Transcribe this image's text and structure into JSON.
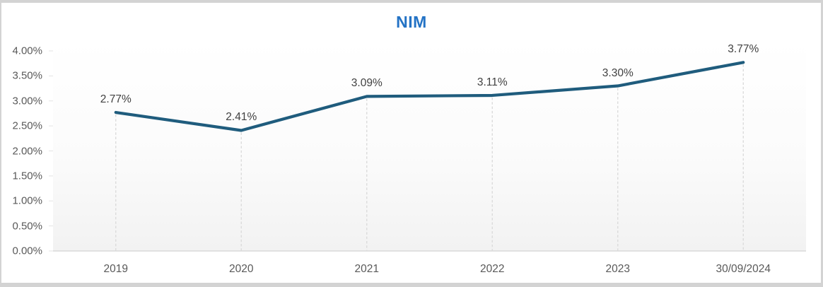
{
  "chart_data": {
    "type": "line",
    "title": "NIM",
    "categories": [
      "2019",
      "2020",
      "2021",
      "2022",
      "2023",
      "30/09/2024"
    ],
    "series": [
      {
        "name": "NIM",
        "values": [
          2.77,
          2.41,
          3.09,
          3.11,
          3.3,
          3.77
        ]
      }
    ],
    "data_labels": [
      "2.77%",
      "2.41%",
      "3.09%",
      "3.11%",
      "3.30%",
      "3.77%"
    ],
    "ylabel": "",
    "xlabel": "",
    "ylim": [
      0,
      4
    ],
    "y_tick_step": 0.5,
    "y_tick_labels": [
      "0.00%",
      "0.50%",
      "1.00%",
      "1.50%",
      "2.00%",
      "2.50%",
      "3.00%",
      "3.50%",
      "4.00%"
    ],
    "legend": "none",
    "grid": "vertical-dashed-drop-lines",
    "colors": {
      "line": "#1f5c7d",
      "title": "#2473c5",
      "axis_text": "#595959",
      "data_label_text": "#404040",
      "drop_line": "#d9d9d9",
      "axis_line": "#d9d9d9",
      "frame_border": "#d3d3d3"
    }
  }
}
